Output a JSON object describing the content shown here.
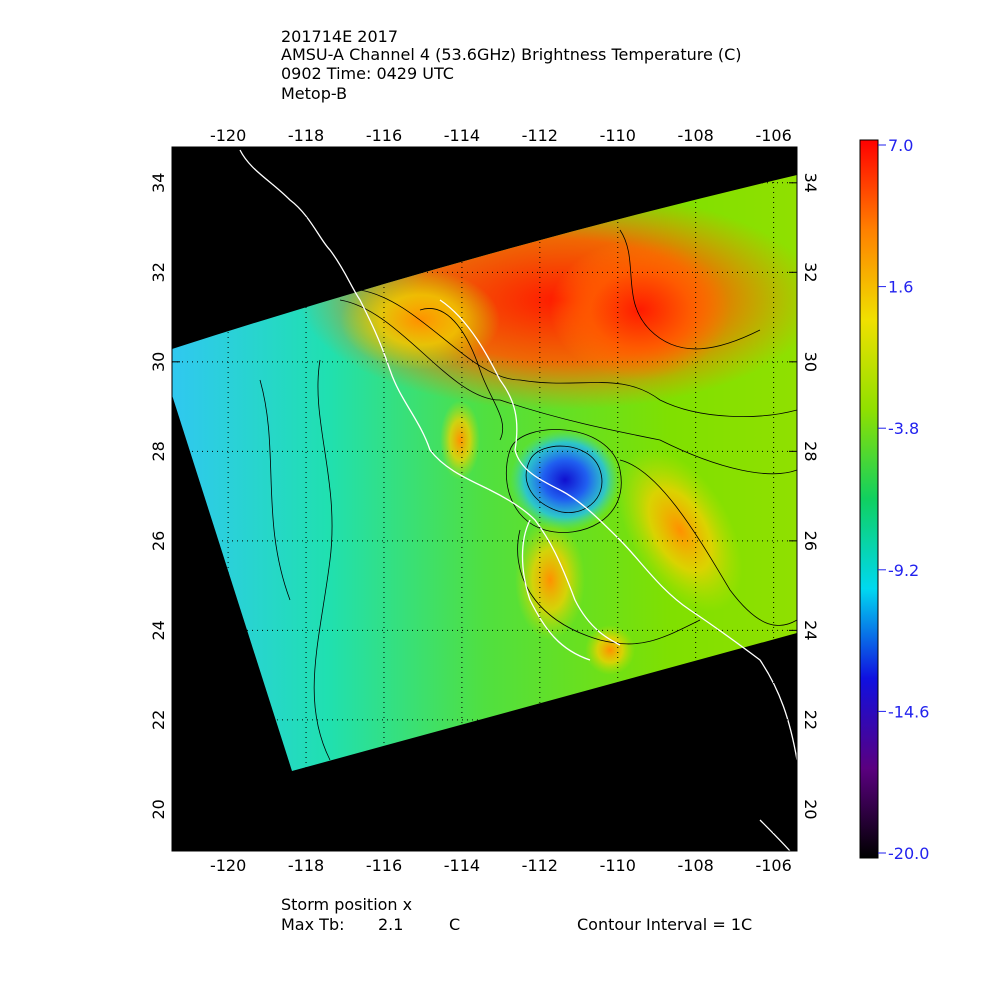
{
  "header": {
    "lines": [
      "201714E 2017",
      "AMSU-A Channel 4 (53.6GHz) Brightness Temperature (C)",
      "0902 Time: 0429 UTC",
      "Metop-B"
    ]
  },
  "map": {
    "lonlim": [
      -121.44,
      -105.4
    ],
    "latlim": [
      19.07,
      34.8
    ],
    "lonticks": [
      -120,
      -118,
      -116,
      -114,
      -112,
      -110,
      -108,
      -106
    ],
    "latticks": [
      20,
      22,
      24,
      26,
      28,
      30,
      32,
      34
    ],
    "grid": true
  },
  "colorbar": {
    "lim": [
      -20,
      7
    ],
    "ticks": [
      {
        "value": 7,
        "label": "7.0"
      },
      1.6,
      -3.8,
      -9.2,
      -14.6,
      {
        "value": -20,
        "label": "-20.0"
      }
    ],
    "colors": [
      "#000000",
      "#5a0080",
      "#1010e0",
      "#00d8f0",
      "#10d060",
      "#90e000",
      "#f0e000",
      "#ff8000",
      "#ff0000"
    ]
  },
  "footer": {
    "storm": "Storm position x",
    "max_label": "Max Tb:",
    "max_value": 2.1,
    "max_unit": "C",
    "contour": "Contour Interval = 1C"
  }
}
